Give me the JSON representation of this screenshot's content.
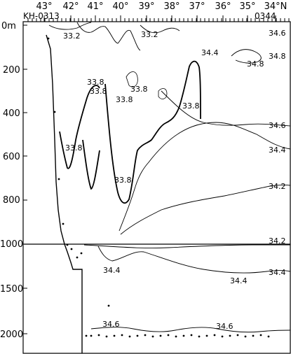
{
  "figure": {
    "station_start": "KH-0313",
    "station_end": "0344",
    "latitude_labels": [
      "43°",
      "42°",
      "41°",
      "40°",
      "39°",
      "38°",
      "37°",
      "36°",
      "35°",
      "34°N"
    ],
    "depth_labels": [
      "0m",
      "200",
      "400",
      "600",
      "800",
      "1000",
      "1500",
      "2000"
    ],
    "contour_labels": [
      {
        "id": "c1",
        "text": "33.2"
      },
      {
        "id": "c2",
        "text": "33.2"
      },
      {
        "id": "c3",
        "text": "34.6"
      },
      {
        "id": "c4",
        "text": "34.4"
      },
      {
        "id": "c5",
        "text": "34.8"
      },
      {
        "id": "c6",
        "text": "34.8"
      },
      {
        "id": "c7",
        "text": "33.8"
      },
      {
        "id": "c8",
        "text": "33.8"
      },
      {
        "id": "c9",
        "text": "33.8"
      },
      {
        "id": "c10",
        "text": "33.8"
      },
      {
        "id": "c11",
        "text": "33.8"
      },
      {
        "id": "c12",
        "text": "34.6"
      },
      {
        "id": "c13",
        "text": "33.8"
      },
      {
        "id": "c14",
        "text": "34.4"
      },
      {
        "id": "c15",
        "text": "33.8"
      },
      {
        "id": "c16",
        "text": "34.2"
      },
      {
        "id": "c17",
        "text": "34.2"
      },
      {
        "id": "c18",
        "text": "34.4"
      },
      {
        "id": "c19",
        "text": "34.4"
      },
      {
        "id": "c20",
        "text": "34.4"
      },
      {
        "id": "c21",
        "text": "34.6"
      },
      {
        "id": "c22",
        "text": "34.6"
      }
    ]
  }
}
